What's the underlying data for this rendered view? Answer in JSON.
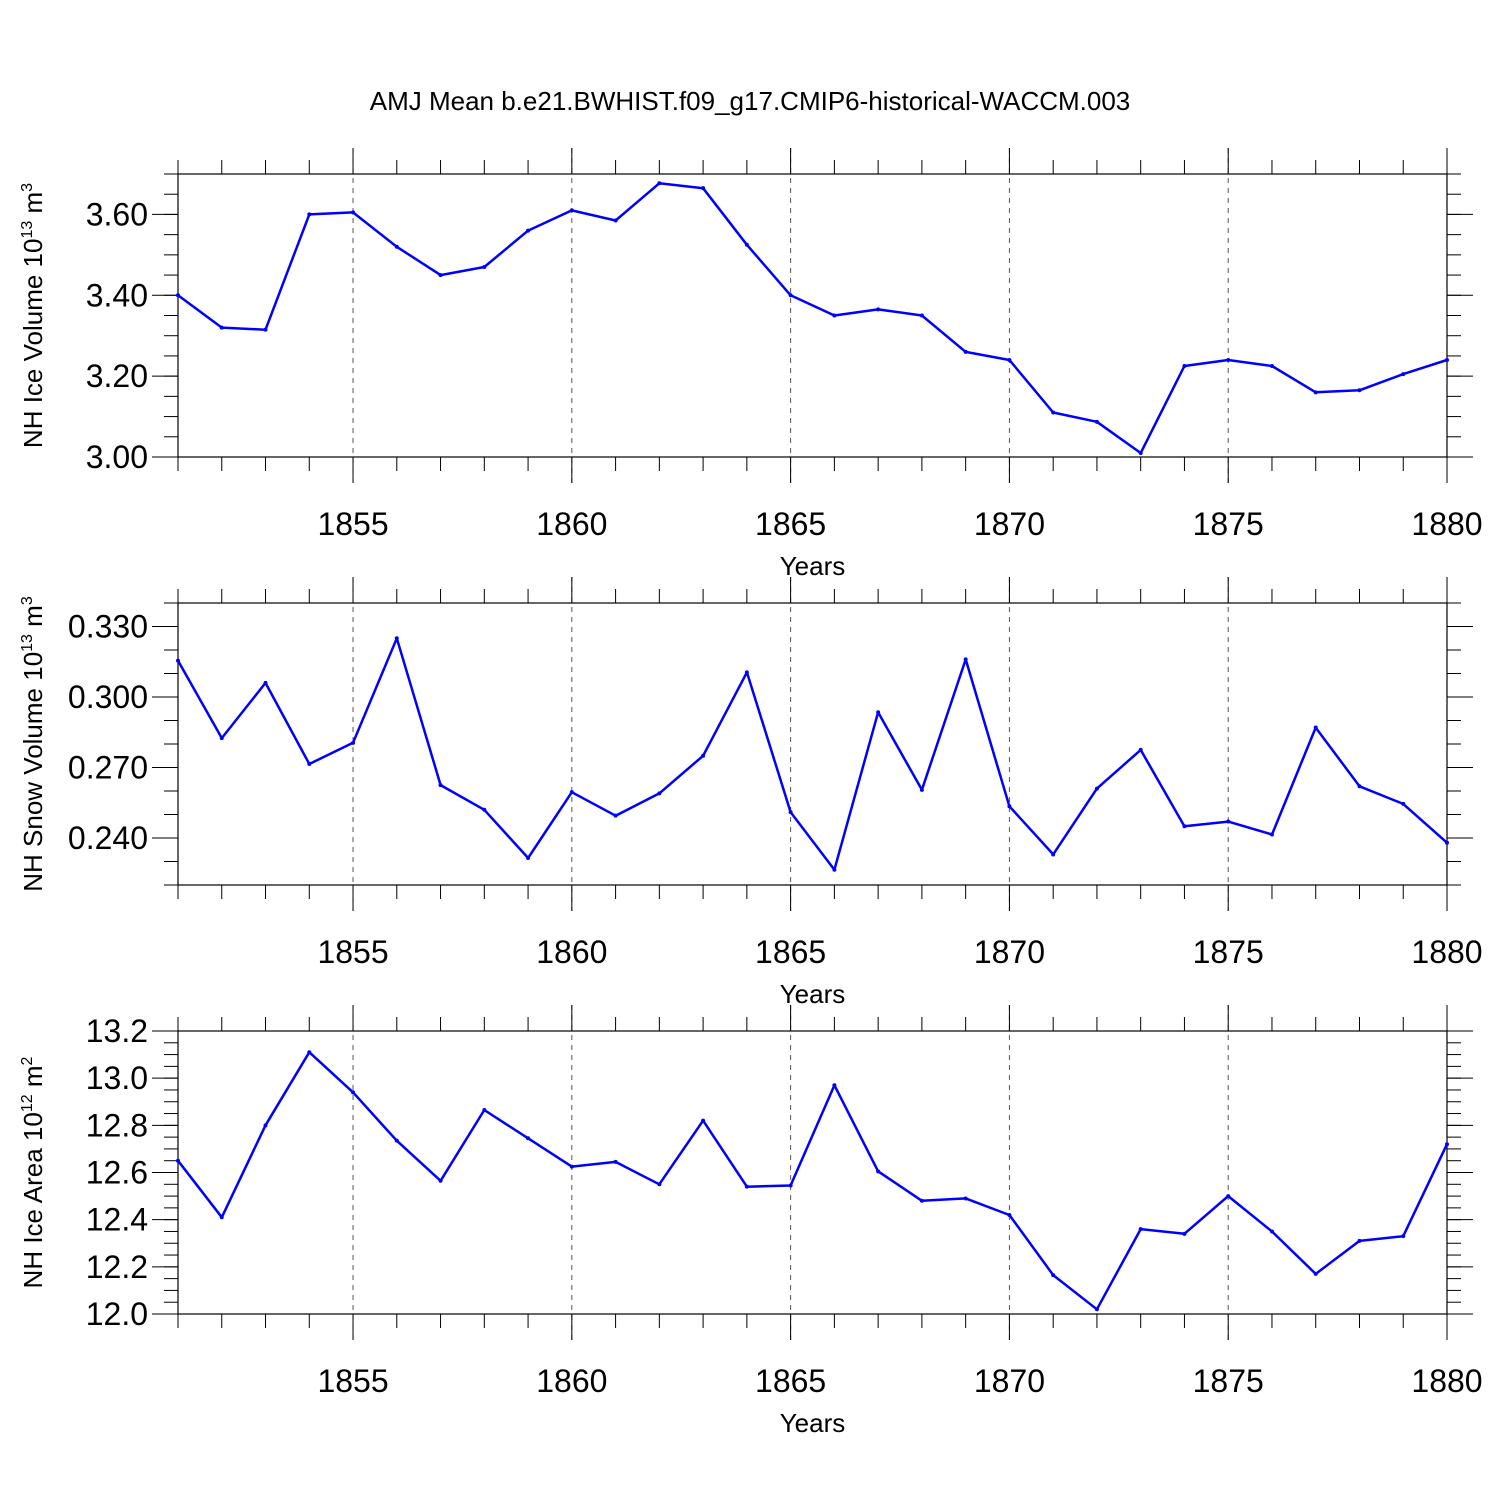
{
  "title": "AMJ Mean b.e21.BWHIST.f09_g17.CMIP6-historical-WACCM.003",
  "colors": {
    "line": "#0000ff",
    "axis": "#000000",
    "grid": "#555555"
  },
  "chart_data": [
    {
      "type": "line",
      "name": "ice-volume",
      "ylabel_base": "NH Ice Volume 10",
      "ylabel_exp": "13",
      "ylabel_unit": " m",
      "ylabel_unit_exp": "3",
      "xlabel": "Years",
      "xlim": [
        1851,
        1880
      ],
      "ylim": [
        3.0,
        3.7
      ],
      "yticks": [
        3.0,
        3.2,
        3.4,
        3.6
      ],
      "ytick_labels": [
        "3.00",
        "3.20",
        "3.40",
        "3.60"
      ],
      "yminor_step": 0.05,
      "xticks": [
        1855,
        1860,
        1865,
        1870,
        1875,
        1880
      ],
      "xtick_labels": [
        "1855",
        "1860",
        "1865",
        "1870",
        "1875",
        "1880"
      ],
      "x": [
        1851,
        1852,
        1853,
        1854,
        1855,
        1856,
        1857,
        1858,
        1859,
        1860,
        1861,
        1862,
        1863,
        1864,
        1865,
        1866,
        1867,
        1868,
        1869,
        1870,
        1871,
        1872,
        1873,
        1874,
        1875,
        1876,
        1877,
        1878,
        1879,
        1880
      ],
      "values": [
        3.4,
        3.32,
        3.315,
        3.6,
        3.605,
        3.52,
        3.45,
        3.47,
        3.56,
        3.61,
        3.585,
        3.677,
        3.665,
        3.525,
        3.4,
        3.35,
        3.365,
        3.35,
        3.26,
        3.24,
        3.11,
        3.087,
        3.01,
        3.225,
        3.24,
        3.225,
        3.16,
        3.165,
        3.205,
        3.24
      ]
    },
    {
      "type": "line",
      "name": "snow-volume",
      "ylabel_base": "NH Snow Volume 10",
      "ylabel_exp": "13",
      "ylabel_unit": " m",
      "ylabel_unit_exp": "3",
      "xlabel": "Years",
      "xlim": [
        1851,
        1880
      ],
      "ylim": [
        0.22,
        0.34
      ],
      "yticks": [
        0.24,
        0.27,
        0.3,
        0.33
      ],
      "ytick_labels": [
        "0.240",
        "0.270",
        "0.300",
        "0.330"
      ],
      "yminor_step": 0.01,
      "xticks": [
        1855,
        1860,
        1865,
        1870,
        1875,
        1880
      ],
      "xtick_labels": [
        "1855",
        "1860",
        "1865",
        "1870",
        "1875",
        "1880"
      ],
      "x": [
        1851,
        1852,
        1853,
        1854,
        1855,
        1856,
        1857,
        1858,
        1859,
        1860,
        1861,
        1862,
        1863,
        1864,
        1865,
        1866,
        1867,
        1868,
        1869,
        1870,
        1871,
        1872,
        1873,
        1874,
        1875,
        1876,
        1877,
        1878,
        1879,
        1880
      ],
      "values": [
        0.3155,
        0.2825,
        0.306,
        0.2715,
        0.2805,
        0.325,
        0.2625,
        0.252,
        0.2315,
        0.2595,
        0.2495,
        0.259,
        0.275,
        0.3105,
        0.251,
        0.2265,
        0.2935,
        0.2605,
        0.316,
        0.2535,
        0.233,
        0.261,
        0.2775,
        0.245,
        0.247,
        0.2415,
        0.287,
        0.262,
        0.2545,
        0.238
      ]
    },
    {
      "type": "line",
      "name": "ice-area",
      "ylabel_base": "NH Ice Area 10",
      "ylabel_exp": "12",
      "ylabel_unit": " m",
      "ylabel_unit_exp": "2",
      "xlabel": "Years",
      "xlim": [
        1851,
        1880
      ],
      "ylim": [
        12.0,
        13.2
      ],
      "yticks": [
        12.0,
        12.2,
        12.4,
        12.6,
        12.8,
        13.0,
        13.2
      ],
      "ytick_labels": [
        "12.0",
        "12.2",
        "12.4",
        "12.6",
        "12.8",
        "13.0",
        "13.2"
      ],
      "yminor_step": 0.05,
      "xticks": [
        1855,
        1860,
        1865,
        1870,
        1875,
        1880
      ],
      "xtick_labels": [
        "1855",
        "1860",
        "1865",
        "1870",
        "1875",
        "1880"
      ],
      "x": [
        1851,
        1852,
        1853,
        1854,
        1855,
        1856,
        1857,
        1858,
        1859,
        1860,
        1861,
        1862,
        1863,
        1864,
        1865,
        1866,
        1867,
        1868,
        1869,
        1870,
        1871,
        1872,
        1873,
        1874,
        1875,
        1876,
        1877,
        1878,
        1879,
        1880
      ],
      "values": [
        12.65,
        12.41,
        12.8,
        13.11,
        12.94,
        12.735,
        12.565,
        12.865,
        12.745,
        12.625,
        12.645,
        12.55,
        12.82,
        12.54,
        12.545,
        12.97,
        12.605,
        12.48,
        12.49,
        12.42,
        12.165,
        12.02,
        12.36,
        12.34,
        12.5,
        12.35,
        12.17,
        12.31,
        12.33,
        12.72
      ]
    }
  ]
}
